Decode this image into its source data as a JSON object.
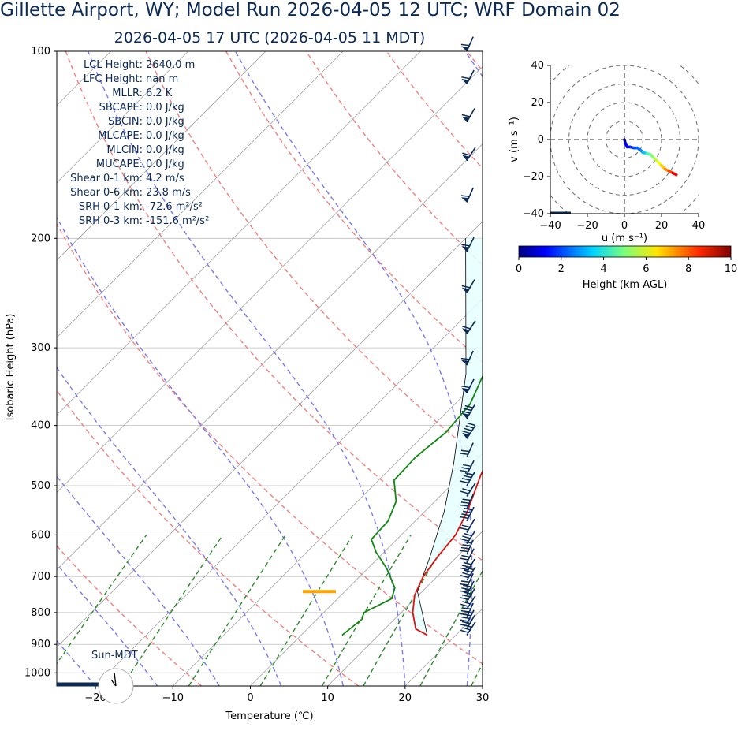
{
  "header": {
    "title": "Gillette  Airport, WY; Model Run 2026-04-05 12 UTC; WRF Domain 02",
    "subtitle": "2026-04-05 17 UTC  (2026-04-05 11 MDT)"
  },
  "stats": [
    {
      "label": "LCL Height:",
      "value": "2640.0 m"
    },
    {
      "label": "LFC Height:",
      "value": "nan m"
    },
    {
      "label": "MLLR:",
      "value": "6.2 K"
    },
    {
      "label": "SBCAPE:",
      "value": "0.0 J/kg"
    },
    {
      "label": "SBCIN:",
      "value": "0.0 J/kg"
    },
    {
      "label": "MLCAPE:",
      "value": "0.0 J/kg"
    },
    {
      "label": "MLCIN:",
      "value": "0.0 J/kg"
    },
    {
      "label": "MUCAPE:",
      "value": "0.0 J/kg"
    },
    {
      "label": "Shear 0-1 km:",
      "value": "4.2 m/s"
    },
    {
      "label": "Shear 0-6 km:",
      "value": "23.8 m/s"
    },
    {
      "label": "SRH 0-1 km:",
      "value": "-72.6 m²/s²"
    },
    {
      "label": "SRH 0-3 km:",
      "value": "-151.6 m²/s²"
    }
  ],
  "sun_label": "Sun-MDT",
  "chart_data": [
    {
      "type": "line",
      "subtype": "skew-t log-p sounding",
      "xlabel": "Temperature (℃)",
      "ylabel": "Isobaric Height (hPa)",
      "xlim": [
        -25,
        30
      ],
      "ylim": [
        1050,
        100
      ],
      "y_scale": "log",
      "x_ticks": [
        -20,
        -10,
        0,
        10,
        20,
        30
      ],
      "y_ticks": [
        100,
        200,
        300,
        400,
        500,
        600,
        700,
        800,
        900,
        1000
      ],
      "lcl_pressure_hPa": 740,
      "series": [
        {
          "role": "temperature",
          "color": "#dd1111",
          "points": [
            [
              16.3,
              870
            ],
            [
              14,
              850
            ],
            [
              11.5,
              800
            ],
            [
              9.5,
              750
            ],
            [
              8.2,
              700
            ],
            [
              7.5,
              650
            ],
            [
              7.0,
              600
            ],
            [
              5.5,
              550
            ],
            [
              2.5,
              480
            ],
            [
              0,
              420
            ],
            [
              -3,
              360
            ],
            [
              -7,
              290
            ],
            [
              -8.5,
              240
            ],
            [
              -9,
              220
            ],
            [
              -5,
              185
            ],
            [
              1,
              155
            ],
            [
              4,
              132
            ],
            [
              5,
              115
            ],
            [
              4,
              100
            ]
          ]
        },
        {
          "role": "dewpoint",
          "color": "#118811",
          "points": [
            [
              5.3,
              870
            ],
            [
              5.8,
              820
            ],
            [
              5.2,
              800
            ],
            [
              7.0,
              760
            ],
            [
              6.0,
              730
            ],
            [
              2.5,
              680
            ],
            [
              -1,
              640
            ],
            [
              -3.3,
              610
            ],
            [
              -3.5,
              570
            ],
            [
              -5,
              530
            ],
            [
              -8,
              490
            ],
            [
              -8.2,
              450
            ],
            [
              -7.5,
              410
            ],
            [
              -8,
              370
            ],
            [
              -12,
              300
            ],
            [
              -15,
              240
            ],
            [
              -15.5,
              225
            ],
            [
              -12.5,
              185
            ],
            [
              -12,
              165
            ],
            [
              -10,
              155
            ],
            [
              -4,
              130
            ],
            [
              3,
              100
            ]
          ]
        },
        {
          "role": "parcel",
          "color": "#000000",
          "points": [
            [
              16.3,
              870
            ],
            [
              9.4,
              740
            ],
            [
              6.5,
              650
            ],
            [
              2.5,
              550
            ],
            [
              -2.5,
              460
            ],
            [
              -12.5,
              330
            ],
            [
              -30,
              200
            ]
          ]
        }
      ]
    },
    {
      "type": "line",
      "subtype": "hodograph",
      "xlabel": "u (m s⁻¹)",
      "ylabel": "v (m s⁻¹)",
      "xlim": [
        -40,
        40
      ],
      "ylim": [
        -40,
        40
      ],
      "x_ticks": [
        -40,
        -20,
        0,
        20,
        40
      ],
      "y_ticks": [
        -40,
        -20,
        0,
        20,
        40
      ],
      "rings": [
        10,
        20,
        30,
        40,
        50
      ],
      "points": [
        [
          0,
          0
        ],
        [
          0.5,
          -2
        ],
        [
          1.5,
          -4
        ],
        [
          3,
          -4
        ],
        [
          5,
          -4.5
        ],
        [
          7,
          -4.5
        ],
        [
          9,
          -6
        ],
        [
          10,
          -7
        ],
        [
          12,
          -7.5
        ],
        [
          14,
          -8
        ],
        [
          16,
          -10
        ],
        [
          18,
          -12
        ],
        [
          20,
          -14
        ],
        [
          22,
          -16
        ],
        [
          24,
          -17
        ],
        [
          26,
          -18
        ],
        [
          28,
          -19
        ]
      ]
    },
    {
      "type": "colorbar",
      "xlabel": "Height (km AGL)",
      "x_ticks": [
        0,
        2,
        4,
        6,
        8,
        10
      ]
    }
  ]
}
